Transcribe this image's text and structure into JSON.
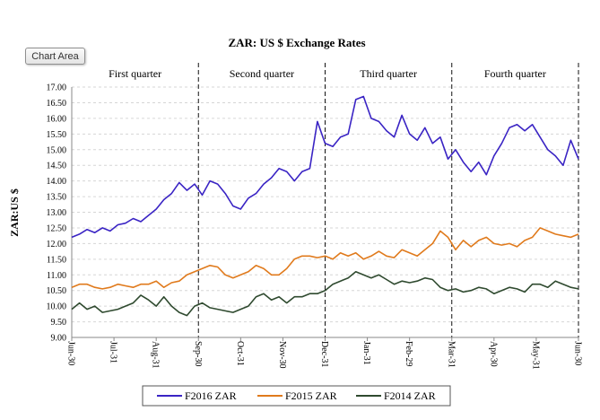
{
  "ui": {
    "chart_area_label": "Chart Area"
  },
  "chart_data": {
    "type": "line",
    "title": "ZAR:  US $ Exchange  Rates",
    "ylabel": "ZAR:US  $",
    "xlabel": "",
    "ylim": [
      9.0,
      17.0
    ],
    "ytick_step": 0.5,
    "grid": true,
    "legend_position": "bottom",
    "x_ticks": [
      "Jun-30",
      "Jul-31",
      "Aug-31",
      "Sep-30",
      "Oct-31",
      "Nov-30",
      "Dec-31",
      "Jan-31",
      "Feb-29",
      "Mar-31",
      "Apr-30",
      "May-31",
      "Jun-30"
    ],
    "quarters": [
      "First  quarter",
      "Second quarter",
      "Third quarter",
      "Fourth quarter"
    ],
    "quarter_dividers_at_tick": [
      3,
      6,
      9,
      12
    ],
    "colors": {
      "F2016 ZAR": "#3a24c4",
      "F2015 ZAR": "#e07a1c",
      "F2014 ZAR": "#2f4a2f"
    },
    "series": [
      {
        "name": "F2016 ZAR",
        "values": [
          12.2,
          12.3,
          12.45,
          12.35,
          12.5,
          12.4,
          12.6,
          12.65,
          12.8,
          12.7,
          12.9,
          13.1,
          13.4,
          13.6,
          13.95,
          13.7,
          13.9,
          13.55,
          14.0,
          13.9,
          13.6,
          13.2,
          13.1,
          13.45,
          13.6,
          13.9,
          14.1,
          14.4,
          14.3,
          14.0,
          14.3,
          14.4,
          15.9,
          15.2,
          15.1,
          15.4,
          15.5,
          16.6,
          16.7,
          16.0,
          15.9,
          15.6,
          15.4,
          16.1,
          15.5,
          15.3,
          15.7,
          15.2,
          15.4,
          14.7,
          15.0,
          14.6,
          14.3,
          14.6,
          14.2,
          14.8,
          15.2,
          15.7,
          15.8,
          15.6,
          15.8,
          15.4,
          15.0,
          14.8,
          14.5,
          15.3,
          14.7
        ]
      },
      {
        "name": "F2015 ZAR",
        "values": [
          10.6,
          10.7,
          10.7,
          10.6,
          10.55,
          10.6,
          10.7,
          10.65,
          10.6,
          10.7,
          10.7,
          10.8,
          10.6,
          10.75,
          10.8,
          11.0,
          11.1,
          11.2,
          11.3,
          11.25,
          11.0,
          10.9,
          11.0,
          11.1,
          11.3,
          11.2,
          11.0,
          11.0,
          11.2,
          11.5,
          11.6,
          11.6,
          11.55,
          11.6,
          11.5,
          11.7,
          11.6,
          11.7,
          11.5,
          11.6,
          11.75,
          11.6,
          11.55,
          11.8,
          11.7,
          11.6,
          11.8,
          12.0,
          12.4,
          12.2,
          11.8,
          12.1,
          11.9,
          12.1,
          12.2,
          12.0,
          11.95,
          12.0,
          11.9,
          12.1,
          12.2,
          12.5,
          12.4,
          12.3,
          12.25,
          12.2,
          12.3
        ]
      },
      {
        "name": "F2014 ZAR",
        "values": [
          9.9,
          10.1,
          9.9,
          10.0,
          9.8,
          9.85,
          9.9,
          10.0,
          10.1,
          10.35,
          10.2,
          10.0,
          10.3,
          10.0,
          9.8,
          9.7,
          10.0,
          10.1,
          9.95,
          9.9,
          9.85,
          9.8,
          9.9,
          10.0,
          10.3,
          10.4,
          10.2,
          10.3,
          10.1,
          10.3,
          10.3,
          10.4,
          10.4,
          10.5,
          10.7,
          10.8,
          10.9,
          11.1,
          11.0,
          10.9,
          11.0,
          10.85,
          10.7,
          10.8,
          10.75,
          10.8,
          10.9,
          10.85,
          10.6,
          10.5,
          10.55,
          10.45,
          10.5,
          10.6,
          10.55,
          10.4,
          10.5,
          10.6,
          10.55,
          10.45,
          10.7,
          10.7,
          10.6,
          10.8,
          10.7,
          10.6,
          10.55
        ]
      }
    ]
  }
}
